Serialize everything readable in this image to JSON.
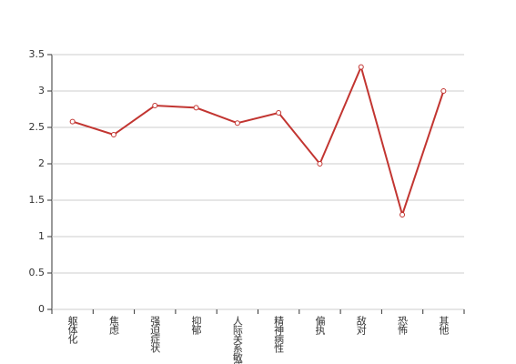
{
  "chart_data": {
    "type": "line",
    "categories": [
      "躯体化",
      "焦虑",
      "强迫症状",
      "抑郁",
      "人际关系敏感",
      "精神病性",
      "偏执",
      "敌对",
      "恐怖",
      "其他"
    ],
    "series": [
      {
        "color": "#c23531",
        "values": [
          2.58,
          2.4,
          2.8,
          2.77,
          2.56,
          2.7,
          2.0,
          3.33,
          1.3,
          3.0
        ]
      }
    ],
    "ylim": [
      0,
      3.5
    ],
    "yticks": [
      0,
      0.5,
      1,
      1.5,
      2,
      2.5,
      3,
      3.5
    ],
    "grid": true
  }
}
